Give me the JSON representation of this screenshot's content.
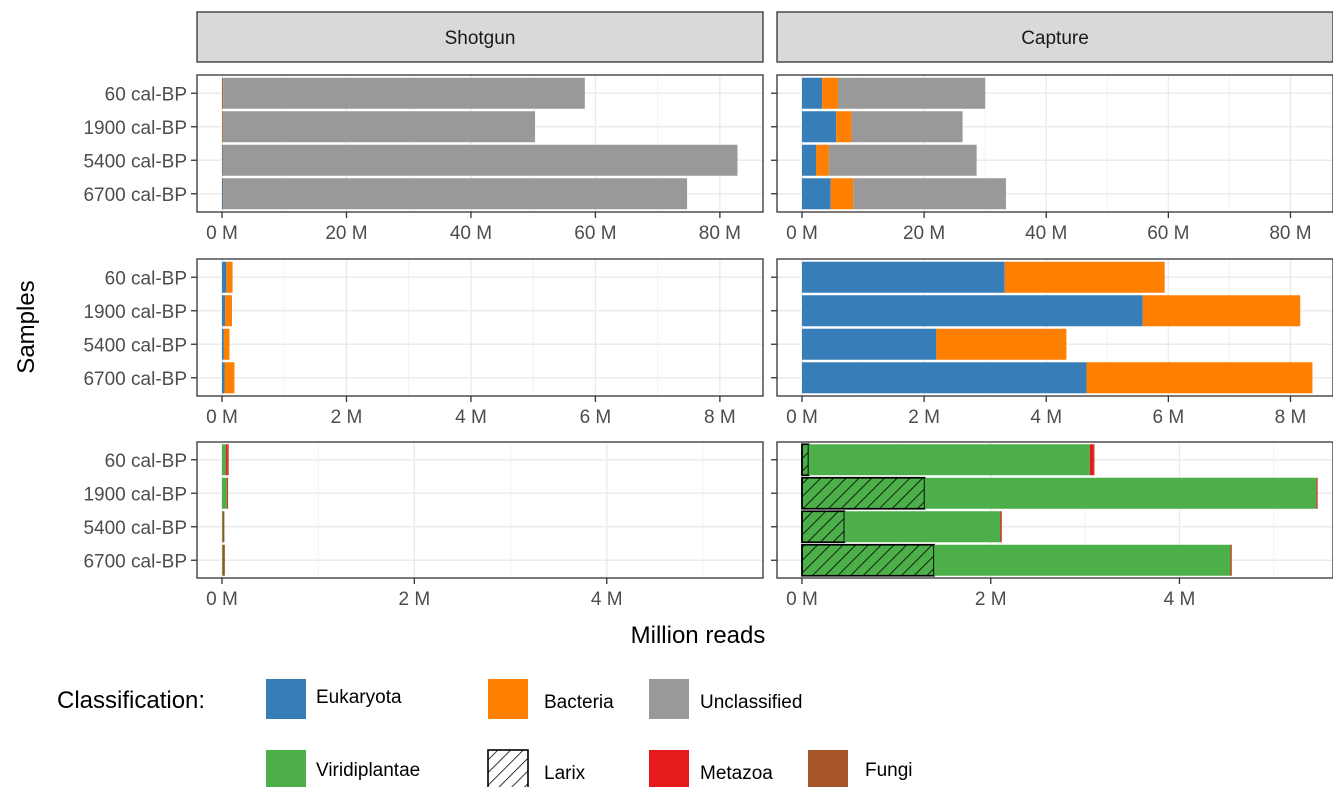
{
  "chart_data": {
    "type": "bar",
    "orientation": "horizontal",
    "stacked": true,
    "facet_columns": [
      "Shotgun",
      "Capture"
    ],
    "categories": [
      "60 cal-BP",
      "1900 cal-BP",
      "5400 cal-BP",
      "6700 cal-BP"
    ],
    "xlabel": "Million reads",
    "ylabel": "Samples",
    "grid": true,
    "legend": {
      "title": "Classification:",
      "position": "bottom",
      "items": [
        {
          "name": "Eukaryota",
          "color": "#377EB8"
        },
        {
          "name": "Bacteria",
          "color": "#FF7F00"
        },
        {
          "name": "Unclassified",
          "color": "#999999"
        },
        {
          "name": "Viridiplantae",
          "color": "#4DAF4A"
        },
        {
          "name": "Larix",
          "color": "#4DAF4A",
          "pattern": "hatch"
        },
        {
          "name": "Metazoa",
          "color": "#E41A1C"
        },
        {
          "name": "Fungi",
          "color": "#A65628"
        }
      ]
    },
    "panels": [
      {
        "row": 1,
        "xlim": [
          0,
          85
        ],
        "x_ticks": [
          0,
          20,
          40,
          60,
          80
        ],
        "x_tick_labels": [
          "0 M",
          "20 M",
          "40 M",
          "60 M",
          "80 M"
        ],
        "facets": {
          "Shotgun": [
            {
              "name": "Eukaryota",
              "values": [
                0.15,
                0.1,
                0.08,
                0.18
              ]
            },
            {
              "name": "Bacteria",
              "values": [
                0.15,
                0.1,
                0.05,
                0.05
              ]
            },
            {
              "name": "Unclassified",
              "values": [
                58.0,
                50.1,
                82.7,
                74.5
              ]
            }
          ],
          "Capture": [
            {
              "name": "Eukaryota",
              "values": [
                3.3,
                5.6,
                2.3,
                4.7
              ]
            },
            {
              "name": "Bacteria",
              "values": [
                2.6,
                2.5,
                2.1,
                3.7
              ]
            },
            {
              "name": "Unclassified",
              "values": [
                24.1,
                18.2,
                24.2,
                25.0
              ]
            }
          ]
        }
      },
      {
        "row": 2,
        "xlim": [
          0,
          8.5
        ],
        "x_ticks": [
          0,
          2,
          4,
          6,
          8
        ],
        "x_tick_labels": [
          "0 M",
          "2 M",
          "4 M",
          "6 M",
          "8 M"
        ],
        "facets": {
          "Shotgun": [
            {
              "name": "Eukaryota",
              "values": [
                0.07,
                0.05,
                0.03,
                0.04
              ]
            },
            {
              "name": "Bacteria",
              "values": [
                0.1,
                0.11,
                0.09,
                0.16
              ]
            }
          ],
          "Capture": [
            {
              "name": "Eukaryota",
              "values": [
                3.32,
                5.58,
                2.2,
                4.66
              ]
            },
            {
              "name": "Bacteria",
              "values": [
                2.62,
                2.58,
                2.13,
                3.7
              ]
            }
          ]
        }
      },
      {
        "row": 3,
        "xlim": [
          0,
          5.5
        ],
        "x_ticks": [
          0,
          2,
          4
        ],
        "x_tick_labels": [
          "0 M",
          "2 M",
          "4 M"
        ],
        "facets": {
          "Shotgun": [
            {
              "name": "Larix",
              "values": [
                0,
                0,
                0,
                0
              ]
            },
            {
              "name": "Viridiplantae",
              "values": [
                0.04,
                0.05,
                0.01,
                0.01
              ]
            },
            {
              "name": "Metazoa",
              "values": [
                0.02,
                0.005,
                0.005,
                0.005
              ]
            },
            {
              "name": "Fungi",
              "values": [
                0.01,
                0.005,
                0.01,
                0.015
              ]
            }
          ],
          "Capture": [
            {
              "name": "Larix",
              "values": [
                0.07,
                1.3,
                0.45,
                1.4
              ]
            },
            {
              "name": "Viridiplantae",
              "values": [
                2.98,
                4.15,
                1.65,
                3.14
              ]
            },
            {
              "name": "Metazoa",
              "values": [
                0.04,
                0.005,
                0.01,
                0.005
              ]
            },
            {
              "name": "Fungi",
              "values": [
                0.01,
                0.01,
                0.005,
                0.01
              ]
            }
          ]
        }
      }
    ]
  }
}
